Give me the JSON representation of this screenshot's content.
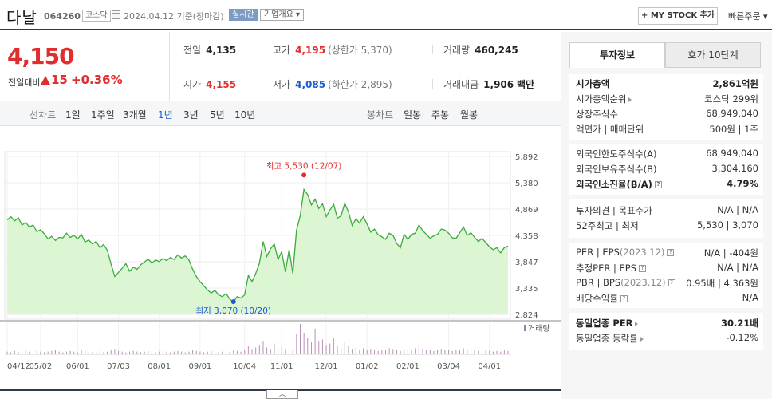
{
  "header": {
    "name": "다날",
    "code": "064260",
    "market": "코스닥",
    "date": "2024.04.12",
    "date_suffix": "기준(장마감)",
    "realtime": "실시간",
    "company_info": "기업개요 ▾",
    "mystock_btn": "+ MY STOCK 추가",
    "quick_order": "빠른주문 ▾"
  },
  "price": {
    "current": "4,150",
    "change_label": "전일대비",
    "change_amount": "15",
    "change_rate": "+0.36%"
  },
  "quotes": {
    "prev_label": "전일",
    "prev": "4,135",
    "high_label": "고가",
    "high": "4,195",
    "upper_limit": "(상한가 5,370)",
    "volume_label": "거래량",
    "volume": "460,245",
    "open_label": "시가",
    "open": "4,155",
    "low_label": "저가",
    "low": "4,085",
    "lower_limit": "(하한가 2,895)",
    "amount_label": "거래대금",
    "amount": "1,906",
    "amount_unit": "백만"
  },
  "period_bar": {
    "line_label": "선차트",
    "line_periods": [
      "1일",
      "1주일",
      "3개월",
      "1년",
      "3년",
      "5년",
      "10년"
    ],
    "active": "1년",
    "candle_label": "봉차트",
    "candle_periods": [
      "일봉",
      "주봉",
      "월봉"
    ]
  },
  "chart_data": {
    "type": "area",
    "y_ticks": [
      "5,892",
      "5,380",
      "4,869",
      "4,358",
      "3,847",
      "3,335",
      "2,824"
    ],
    "ylim": [
      2824,
      5892
    ],
    "x_ticks": [
      "04/12",
      "05/02",
      "06/01",
      "07/03",
      "08/01",
      "09/01",
      "10/04",
      "11/01",
      "12/01",
      "01/02",
      "02/01",
      "03/04",
      "04/01"
    ],
    "series_values": [
      4660,
      4720,
      4640,
      4700,
      4560,
      4610,
      4520,
      4560,
      4430,
      4470,
      4390,
      4290,
      4340,
      4260,
      4320,
      4310,
      4400,
      4320,
      4360,
      4290,
      4380,
      4230,
      4270,
      4190,
      4240,
      4120,
      4180,
      4070,
      3800,
      3560,
      3640,
      3720,
      3810,
      3660,
      3740,
      3700,
      3790,
      3840,
      3900,
      3820,
      3880,
      3850,
      3910,
      3870,
      3930,
      3890,
      3980,
      3920,
      3960,
      3880,
      3700,
      3560,
      3460,
      3380,
      3300,
      3240,
      3290,
      3200,
      3170,
      3230,
      3120,
      3070,
      3170,
      3140,
      3200,
      3580,
      3460,
      3620,
      3820,
      4240,
      3950,
      4100,
      4190,
      3890,
      4040,
      3650,
      4080,
      3620,
      4460,
      4740,
      5250,
      5150,
      4950,
      5060,
      4880,
      4970,
      4720,
      4850,
      4960,
      4690,
      4740,
      4980,
      4810,
      4550,
      4680,
      4600,
      4720,
      4580,
      4420,
      4480,
      4370,
      4330,
      4280,
      4400,
      4360,
      4200,
      4120,
      4380,
      4280,
      4380,
      4400,
      4560,
      4450,
      4380,
      4300,
      4350,
      4380,
      4480,
      4460,
      4400,
      4310,
      4300,
      4410,
      4520,
      4360,
      4410,
      4320,
      4240,
      4300,
      4220,
      4140,
      4080,
      4120,
      4020,
      4120,
      4150
    ],
    "max_label": "최고 5,530 (12/07)",
    "max_value": 5530,
    "min_label": "최저 3,070 (10/20)",
    "min_value": 3070,
    "volume_label": "거래량",
    "volume_values": [
      4,
      3,
      5,
      4,
      3,
      6,
      4,
      3,
      5,
      4,
      3,
      4,
      5,
      6,
      4,
      3,
      4,
      5,
      4,
      3,
      6,
      5,
      4,
      3,
      4,
      5,
      3,
      4,
      6,
      8,
      5,
      4,
      3,
      4,
      5,
      4,
      3,
      4,
      5,
      4,
      3,
      4,
      5,
      4,
      3,
      4,
      5,
      4,
      3,
      4,
      6,
      5,
      4,
      3,
      4,
      5,
      4,
      3,
      4,
      5,
      4,
      6,
      5,
      4,
      6,
      12,
      8,
      10,
      14,
      20,
      10,
      8,
      16,
      9,
      12,
      8,
      10,
      6,
      30,
      45,
      32,
      25,
      18,
      38,
      20,
      22,
      14,
      16,
      24,
      12,
      10,
      18,
      12,
      8,
      10,
      6,
      9,
      7,
      8,
      6,
      5,
      7,
      6,
      9,
      8,
      6,
      5,
      8,
      6,
      7,
      9,
      14,
      8,
      7,
      6,
      5,
      6,
      8,
      7,
      6,
      5,
      6,
      7,
      9,
      6,
      5,
      6,
      5,
      7,
      6,
      5,
      4,
      5,
      4,
      6,
      5
    ],
    "line_color": "#3caa3c",
    "fill_color": "#dcf5d3"
  },
  "right_panel": {
    "tab_active": "투자정보",
    "tab_other": "호가 10단계",
    "group1": [
      {
        "label": "시가총액",
        "value": "2,861억원",
        "bold": true
      },
      {
        "label": "시가총액순위",
        "value": "코스닥 299위",
        "arrow": true
      },
      {
        "label": "상장주식수",
        "value": "68,949,040"
      },
      {
        "label": "액면가 | 매매단위",
        "value": "500원 | 1주"
      }
    ],
    "group2": [
      {
        "label": "외국인한도주식수(A)",
        "value": "68,949,040"
      },
      {
        "label": "외국인보유주식수(B)",
        "value": "3,304,160"
      },
      {
        "label": "외국인소진율(B/A)",
        "value": "4.79%",
        "bold": true,
        "q": true
      }
    ],
    "group3": [
      {
        "label": "투자의견 | 목표주가",
        "value": "N/A | N/A"
      },
      {
        "label": "52주최고 | 최저",
        "value": "5,530 | 3,070"
      }
    ],
    "group4": [
      {
        "label": "PER | EPS",
        "sub": "(2023.12)",
        "value": "N/A | -404원",
        "q": true
      },
      {
        "label": "추정PER | EPS",
        "value": "N/A | N/A",
        "q": true
      },
      {
        "label": "PBR | BPS",
        "sub": "(2023.12)",
        "value": "0.95배 | 4,363원",
        "q": true
      },
      {
        "label": "배당수익률",
        "value": "N/A",
        "q": true
      }
    ],
    "group5": [
      {
        "label": "동일업종 PER",
        "value": "30.21배",
        "bold": true,
        "arrow": true
      },
      {
        "label": "동일업종 등락률",
        "value": "-0.12%",
        "arrow": true,
        "blue": true
      }
    ]
  }
}
